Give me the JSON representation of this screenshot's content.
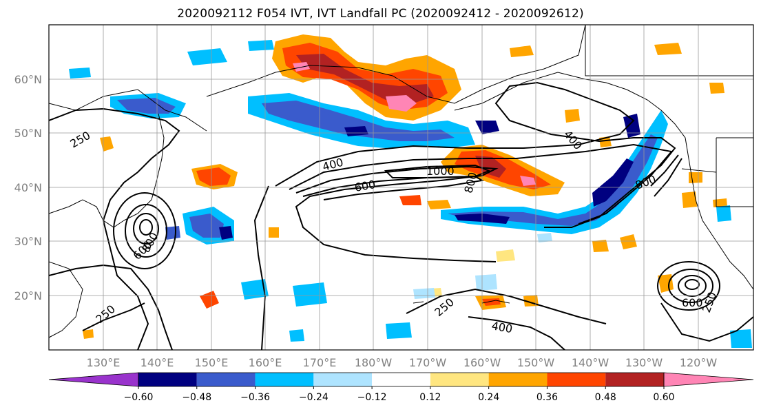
{
  "title": "2020092112 F054 IVT, IVT Landfall PC (2020092412 - 2020092612)",
  "lat_labels": [
    "60°N",
    "50°N",
    "40°N",
    "30°N",
    "20°N"
  ],
  "lon_labels": [
    "130°E",
    "140°E",
    "150°E",
    "160°E",
    "170°E",
    "180°W",
    "170°W",
    "160°W",
    "150°W",
    "140°W",
    "130°W",
    "120°W"
  ],
  "colorbar": {
    "ticks": [
      "−0.60",
      "−0.48",
      "−0.36",
      "−0.24",
      "−0.12",
      "0.12",
      "0.24",
      "0.36",
      "0.48",
      "0.60"
    ],
    "colors": [
      "#9933cc",
      "#000080",
      "#3a5bcc",
      "#00bfff",
      "#aee4ff",
      "#ffffff",
      "#ffe680",
      "#ffa500",
      "#ff4500",
      "#b22222",
      "#ff85b5"
    ]
  },
  "contour_labels": [
    {
      "text": "250"
    },
    {
      "text": "250"
    },
    {
      "text": "250"
    },
    {
      "text": "250"
    },
    {
      "text": "400"
    },
    {
      "text": "400"
    },
    {
      "text": "400"
    },
    {
      "text": "600"
    },
    {
      "text": "600"
    },
    {
      "text": "600"
    },
    {
      "text": "800"
    },
    {
      "text": "800"
    },
    {
      "text": "800"
    },
    {
      "text": "1000"
    }
  ],
  "palette": {
    "land_line": "#000000",
    "grid": "#999999",
    "tick_text": "#808080"
  }
}
